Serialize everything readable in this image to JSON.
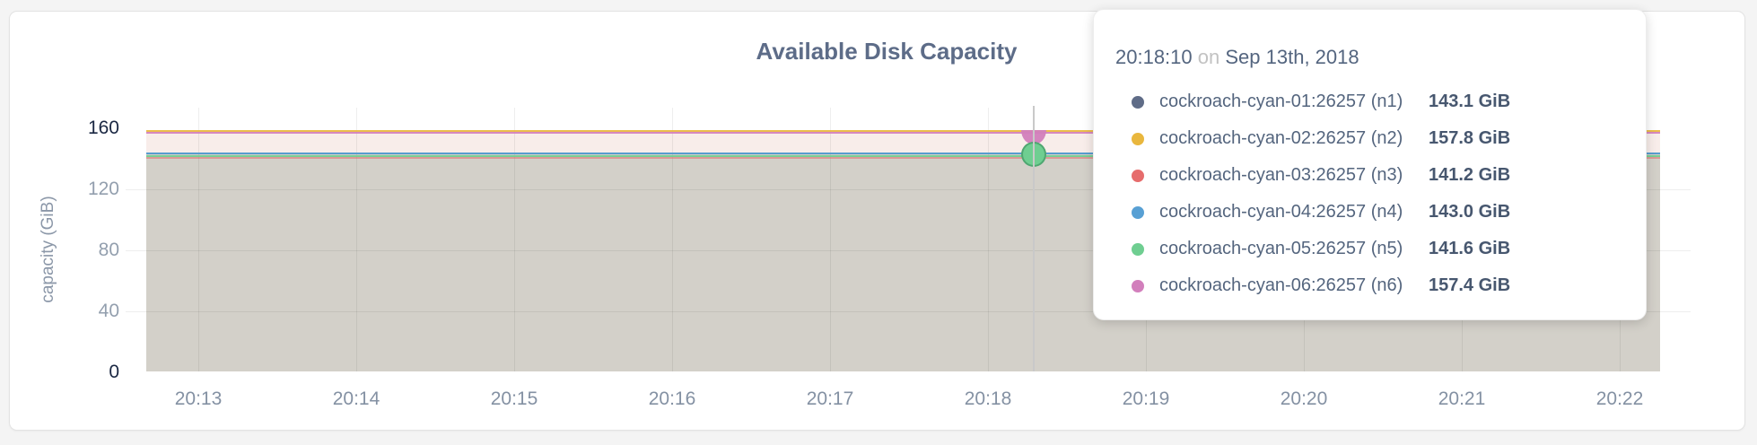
{
  "palette": {
    "n1": "#5f6c87",
    "n2": "#e9b73e",
    "n3": "#e66c6c",
    "n4": "#58a0d4",
    "n5": "#6fce91",
    "n6": "#d27fbc"
  },
  "colors": {
    "page_bg": "#f4f4f4",
    "card_bg": "#ffffff",
    "title_text": "#5d6c88",
    "area_fill_lower": "#d3d0c9",
    "area_fill_upper": "#f8edea",
    "guideline": "#c9c9c9",
    "tick_emphasis": "#1a2742",
    "tick_muted": "#939fae"
  },
  "chart": {
    "title": "Available Disk Capacity",
    "y_axis": {
      "label": "capacity (GiB)",
      "ticks": [
        {
          "label": "160",
          "emph": true
        },
        {
          "label": "120",
          "emph": false
        },
        {
          "label": "80",
          "emph": false
        },
        {
          "label": "40",
          "emph": false
        },
        {
          "label": "0",
          "emph": true
        }
      ]
    },
    "x_axis": {
      "ticks": [
        "20:13",
        "20:14",
        "20:15",
        "20:16",
        "20:17",
        "20:18",
        "20:19",
        "20:20",
        "20:21",
        "20:22"
      ]
    }
  },
  "tooltip": {
    "time": "20:18:10",
    "conjunction": "on",
    "date": "Sep 13th, 2018",
    "rows": [
      {
        "name": "cockroach-cyan-01:26257 (n1)",
        "value": "143.1 GiB",
        "color_key": "n1"
      },
      {
        "name": "cockroach-cyan-02:26257 (n2)",
        "value": "157.8 GiB",
        "color_key": "n2"
      },
      {
        "name": "cockroach-cyan-03:26257 (n3)",
        "value": "141.2 GiB",
        "color_key": "n3"
      },
      {
        "name": "cockroach-cyan-04:26257 (n4)",
        "value": "143.0 GiB",
        "color_key": "n4"
      },
      {
        "name": "cockroach-cyan-05:26257 (n5)",
        "value": "141.6 GiB",
        "color_key": "n5"
      },
      {
        "name": "cockroach-cyan-06:26257 (n6)",
        "value": "157.4 GiB",
        "color_key": "n6"
      }
    ]
  },
  "chart_data": {
    "type": "line",
    "title": "Available Disk Capacity",
    "xlabel": "",
    "ylabel": "capacity (GiB)",
    "ylim": [
      0,
      160
    ],
    "y_ticks": [
      0,
      40,
      80,
      120,
      160
    ],
    "x_ticks": [
      "20:13",
      "20:14",
      "20:15",
      "20:16",
      "20:17",
      "20:18",
      "20:19",
      "20:20",
      "20:21",
      "20:22"
    ],
    "grid": true,
    "legend_position": "tooltip-overlay",
    "series_shape": "flat lines with translucent area fill to zero",
    "hover_point": {
      "time": "20:18:10",
      "date": "Sep 13th, 2018"
    },
    "series": [
      {
        "name": "cockroach-cyan-01:26257 (n1)",
        "color": "#5f6c87",
        "value_gib": 143.1
      },
      {
        "name": "cockroach-cyan-02:26257 (n2)",
        "color": "#e9b73e",
        "value_gib": 157.8
      },
      {
        "name": "cockroach-cyan-03:26257 (n3)",
        "color": "#e66c6c",
        "value_gib": 141.2
      },
      {
        "name": "cockroach-cyan-04:26257 (n4)",
        "color": "#58a0d4",
        "value_gib": 143.0
      },
      {
        "name": "cockroach-cyan-05:26257 (n5)",
        "color": "#6fce91",
        "value_gib": 141.6
      },
      {
        "name": "cockroach-cyan-06:26257 (n6)",
        "color": "#d27fbc",
        "value_gib": 157.4
      }
    ]
  }
}
